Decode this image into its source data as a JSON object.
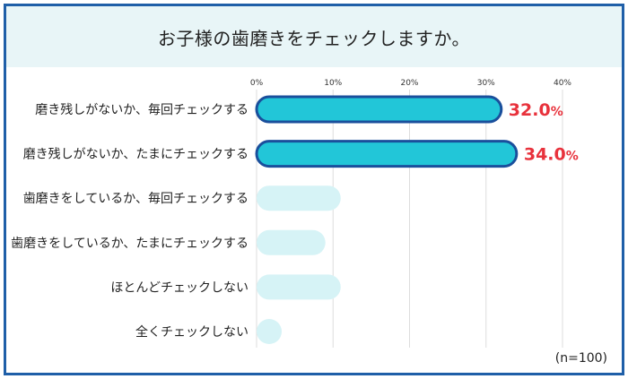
{
  "title": "お子様の歯磨きをチェックしますか。",
  "note": "(n=100)",
  "colors": {
    "highlight_fill": "#22c6d8",
    "highlight_stroke": "#1a4f9c",
    "muted_fill": "#d6f3f6",
    "value_label": "#e8323c",
    "grid": "#dddddd",
    "frame": "#1f5fa8",
    "title_band": "#e8f5f7"
  },
  "chart_data": {
    "type": "bar",
    "orientation": "horizontal",
    "categories": [
      "磨き残しがないか、毎回チェックする",
      "磨き残しがないか、たまにチェックする",
      "歯磨きをしているか、毎回チェックする",
      "歯磨きをしているか、たまにチェックする",
      "ほとんどチェックしない",
      "全くチェックしない"
    ],
    "values": [
      32.0,
      34.0,
      11.0,
      9.0,
      11.0,
      3.0
    ],
    "highlighted": [
      true,
      true,
      false,
      false,
      false,
      false
    ],
    "data_labels": [
      "32.0",
      "34.0",
      "",
      "",
      "",
      ""
    ],
    "data_label_unit": "%",
    "xlim": [
      0,
      40
    ],
    "xticks": [
      0,
      10,
      20,
      30,
      40
    ],
    "xtick_labels": [
      "0%",
      "10%",
      "20%",
      "30%",
      "40%"
    ],
    "axis_position": "top",
    "grid": true
  }
}
